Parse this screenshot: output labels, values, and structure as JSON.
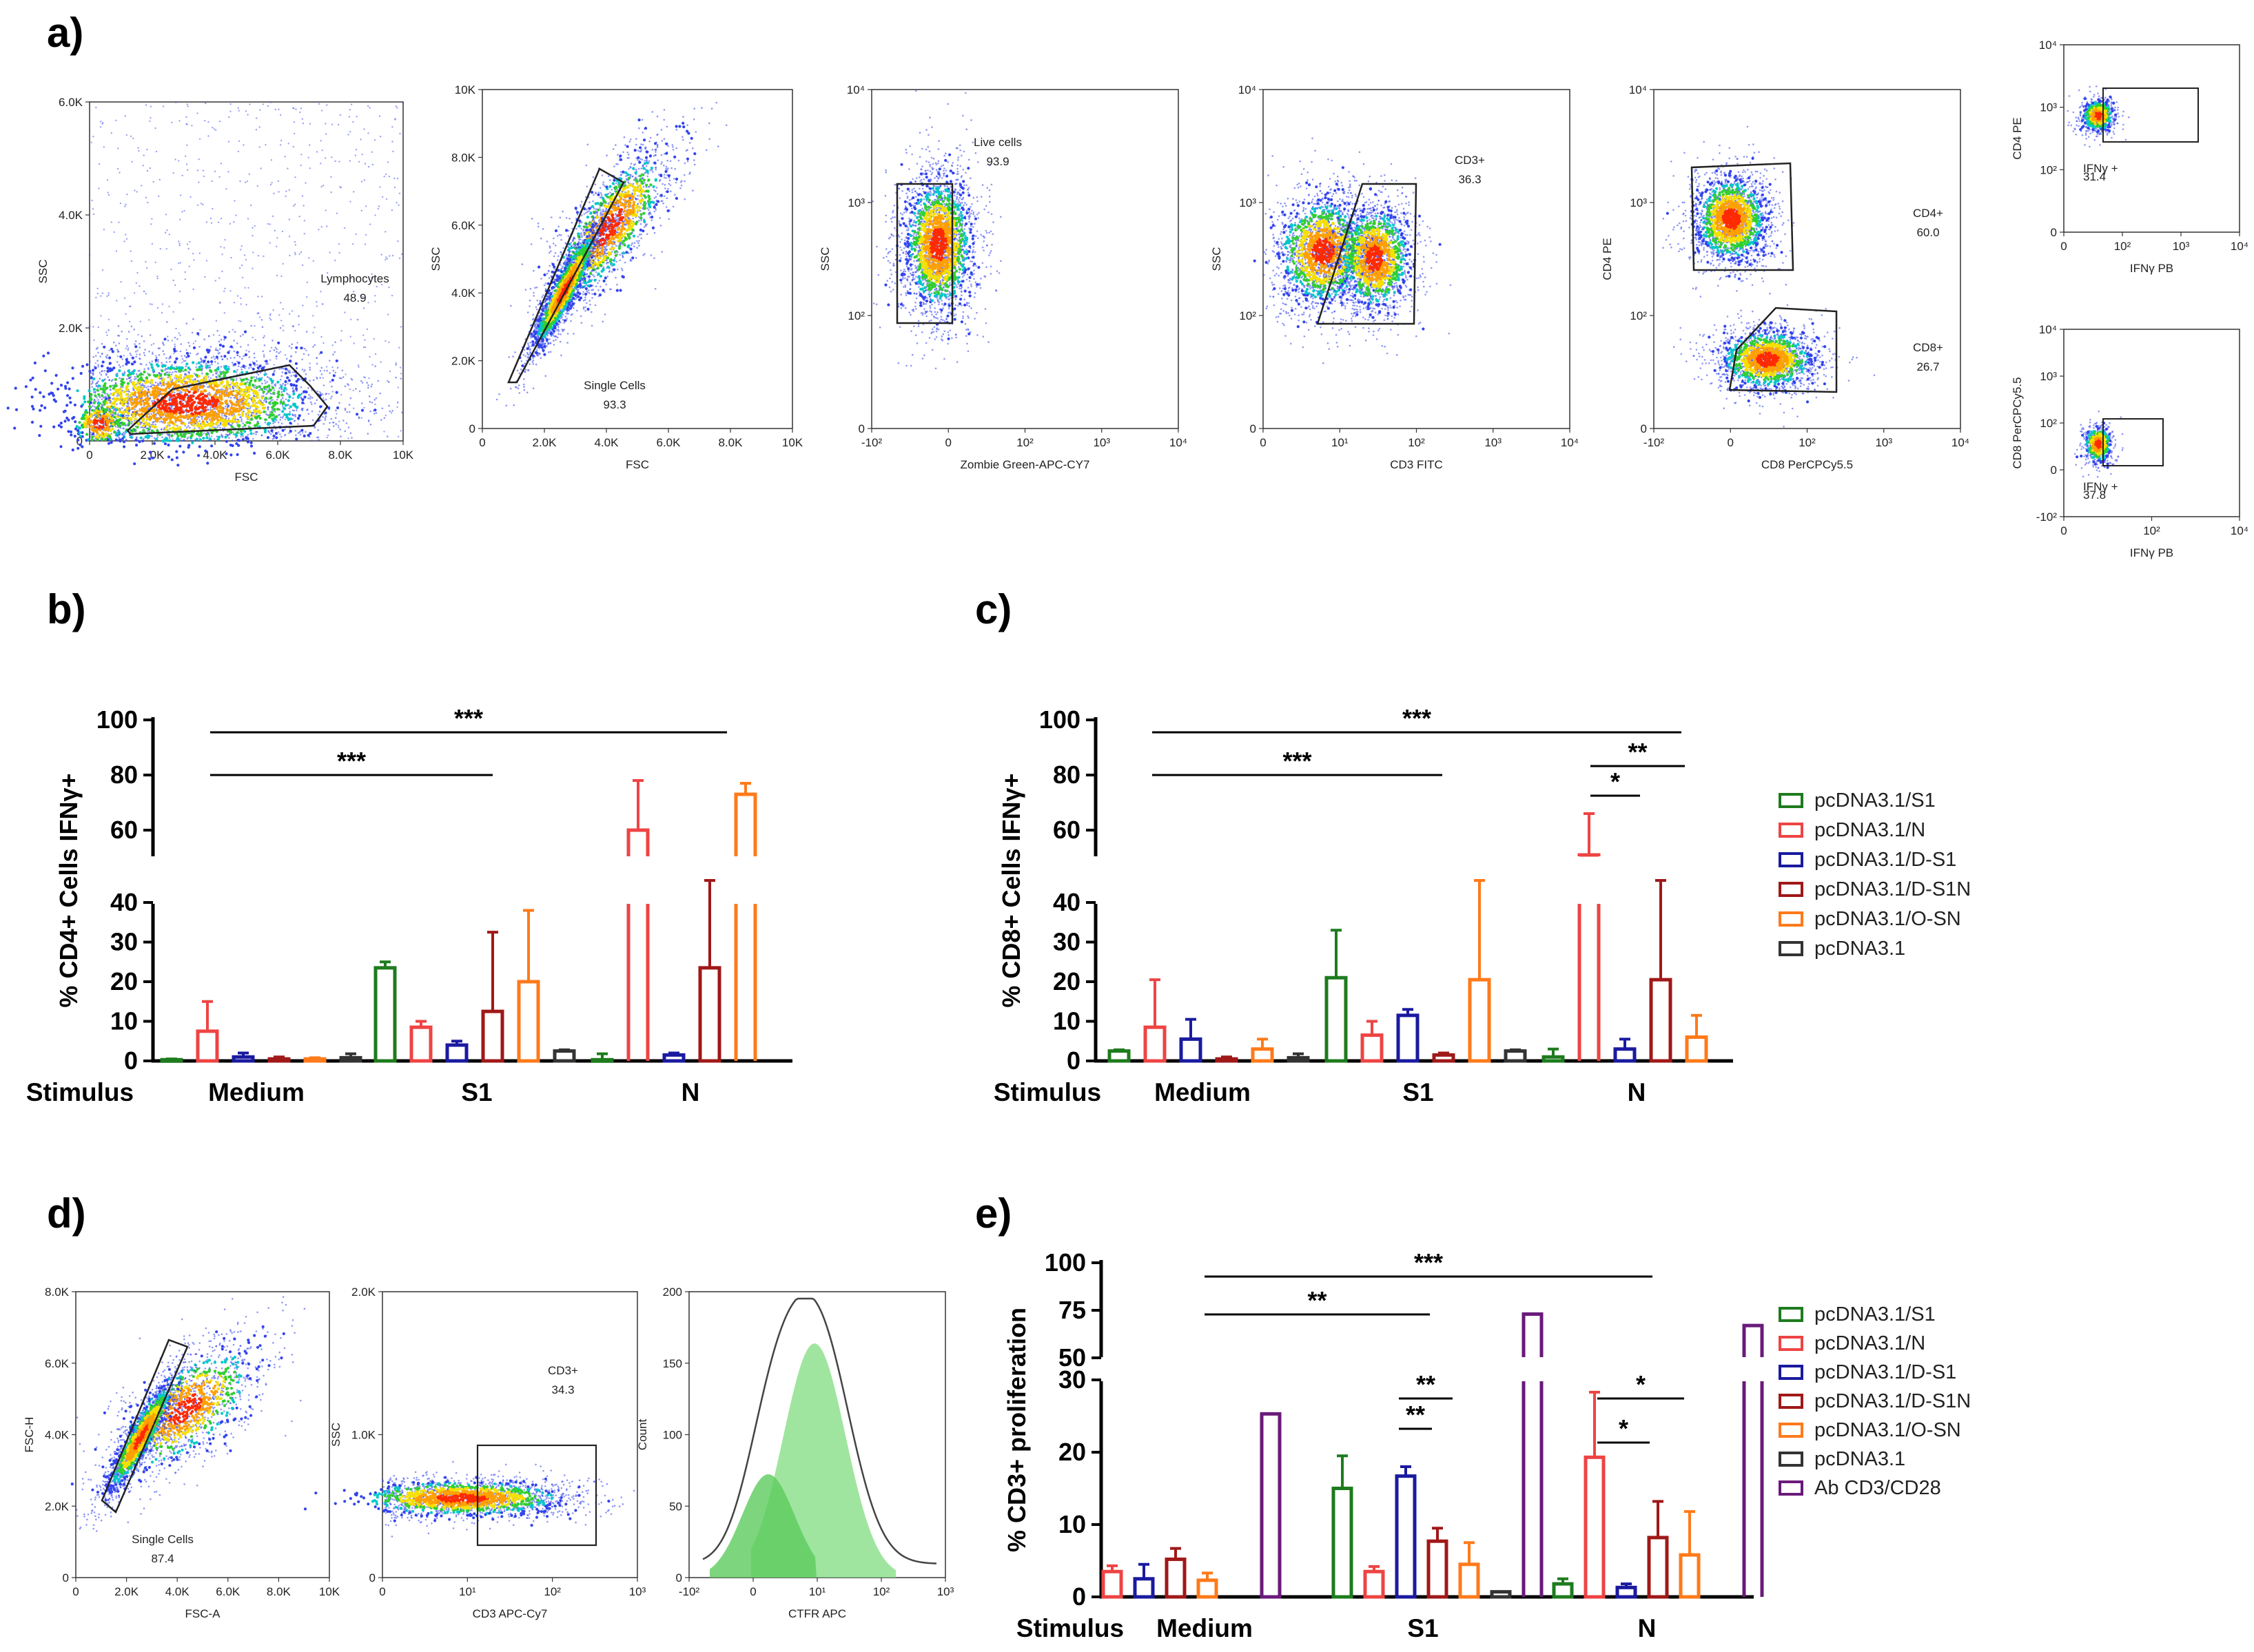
{
  "panel_labels": {
    "a": "a)",
    "b": "b)",
    "c": "c)",
    "d": "d)",
    "e": "e)"
  },
  "colors": {
    "pcDNA3.1/S1": "#1e7b1e",
    "pcDNA3.1/N": "#ee4444",
    "pcDNA3.1/D-S1": "#1a1aa0",
    "pcDNA3.1/D-S1N": "#a01818",
    "pcDNA3.1/O-SN": "#ff7a1a",
    "pcDNA3.1": "#333333",
    "Ab CD3/CD28": "#6a1a7a",
    "dots": "#3344ee",
    "gate": "#222222"
  },
  "flow_a": {
    "p1": {
      "xlabel": "FSC",
      "ylabel": "SSC",
      "xticks": [
        "0",
        "2.0K",
        "4.0K",
        "6.0K",
        "8.0K",
        "10K"
      ],
      "yticks": [
        "0",
        "2.0K",
        "4.0K",
        "6.0K"
      ],
      "gate_name": "Lymphocytes",
      "gate_value": "48.9"
    },
    "p2": {
      "xlabel": "FSC",
      "ylabel": "SSC",
      "xticks": [
        "0",
        "2.0K",
        "4.0K",
        "6.0K",
        "8.0K",
        "10K"
      ],
      "yticks": [
        "0",
        "2.0K",
        "4.0K",
        "6.0K",
        "8.0K",
        "10K"
      ],
      "gate_name": "Single Cells",
      "gate_value": "93.3"
    },
    "p3": {
      "xlabel": "Zombie Green-APC-CY7",
      "ylabel": "SSC",
      "xticks": [
        "-10²",
        "0",
        "10²",
        "10³",
        "10⁴"
      ],
      "yticks": [
        "0",
        "10²",
        "10³",
        "10⁴"
      ],
      "gate_name": "Live cells",
      "gate_value": "93.9"
    },
    "p4": {
      "xlabel": "CD3 FITC",
      "ylabel": "SSC",
      "xticks": [
        "0",
        "10¹",
        "10²",
        "10³",
        "10⁴"
      ],
      "yticks": [
        "0",
        "10²",
        "10³",
        "10⁴"
      ],
      "gate_name": "CD3+",
      "gate_value": "36.3"
    },
    "p5": {
      "xlabel": "CD8 PerCPCy5.5",
      "ylabel": "CD4 PE",
      "xticks": [
        "-10²",
        "0",
        "10²",
        "10³",
        "10⁴"
      ],
      "yticks": [
        "0",
        "10²",
        "10³",
        "10⁴"
      ],
      "gate1_name": "CD4+",
      "gate1_value": "60.0",
      "gate2_name": "CD8+",
      "gate2_value": "26.7"
    },
    "p6": {
      "xlabel": "IFNγ PB",
      "ylabel": "CD4 PE",
      "xticks": [
        "0",
        "10²",
        "10³",
        "10⁴"
      ],
      "yticks": [
        "0",
        "10²",
        "10³",
        "10⁴"
      ],
      "gate_name": "IFNγ +",
      "gate_value": "31.4"
    },
    "p7": {
      "xlabel": "IFNγ PB",
      "ylabel": "CD8 PerCPCy5.5",
      "xticks": [
        "0",
        "10²",
        "10⁴"
      ],
      "yticks": [
        "-10²",
        "0",
        "10²",
        "10³",
        "10⁴"
      ],
      "gate_name": "IFNγ +",
      "gate_value": "37.8"
    }
  },
  "flow_d": {
    "p1": {
      "xlabel": "FSC-A",
      "ylabel": "FSC-H",
      "xticks": [
        "0",
        "2.0K",
        "4.0K",
        "6.0K",
        "8.0K",
        "10K"
      ],
      "yticks": [
        "0",
        "2.0K",
        "4.0K",
        "6.0K",
        "8.0K"
      ],
      "gate_name": "Single Cells",
      "gate_value": "87.4"
    },
    "p2": {
      "xlabel": "CD3 APC-Cy7",
      "ylabel": "SSC",
      "xticks": [
        "0",
        "10¹",
        "10²",
        "10³"
      ],
      "yticks": [
        "0",
        "1.0K",
        "2.0K"
      ],
      "gate_name": "CD3+",
      "gate_value": "34.3"
    },
    "p3": {
      "xlabel": "CTFR APC",
      "ylabel": "Count",
      "xticks": [
        "-10²",
        "0",
        "10¹",
        "10²",
        "10³"
      ],
      "yticks": [
        "0",
        "50",
        "100",
        "150",
        "200"
      ]
    }
  },
  "chart_data": [
    {
      "id": "b",
      "type": "bar",
      "ylabel": "% CD4+ Cells IFNγ+",
      "stimulus_label": "Stimulus",
      "categories": [
        "Medium",
        "S1",
        "N"
      ],
      "y_broken": true,
      "yticks_lower": [
        0,
        10,
        20,
        30,
        40
      ],
      "yticks_upper": [
        60,
        80,
        100
      ],
      "series": [
        {
          "name": "pcDNA3.1/S1",
          "values": [
            0.3,
            23.5,
            0.3
          ],
          "errors": [
            0.2,
            1.5,
            1.5
          ]
        },
        {
          "name": "pcDNA3.1/N",
          "values": [
            7.5,
            8.5,
            60
          ],
          "errors": [
            7.5,
            1.5,
            18
          ]
        },
        {
          "name": "pcDNA3.1/D-S1",
          "values": [
            1.0,
            4.0,
            1.5
          ],
          "errors": [
            1.0,
            1.0,
            0.5
          ]
        },
        {
          "name": "pcDNA3.1/D-S1N",
          "values": [
            0.5,
            12.5,
            23.5
          ],
          "errors": [
            0.5,
            20,
            25
          ]
        },
        {
          "name": "pcDNA3.1/O-SN",
          "values": [
            0.5,
            20,
            73
          ],
          "errors": [
            0.3,
            18,
            4
          ]
        },
        {
          "name": "pcDNA3.1",
          "values": [
            0.8,
            2.5,
            0
          ],
          "errors": [
            1.0,
            0.3,
            0
          ]
        }
      ],
      "significance": [
        {
          "label": "***",
          "from": "Medium",
          "to": "S1"
        },
        {
          "label": "***",
          "from": "Medium",
          "to": "N"
        }
      ]
    },
    {
      "id": "c",
      "type": "bar",
      "ylabel": "% CD8+ Cells IFNγ+",
      "stimulus_label": "Stimulus",
      "categories": [
        "Medium",
        "S1",
        "N"
      ],
      "y_broken": true,
      "yticks_lower": [
        0,
        10,
        20,
        30,
        40
      ],
      "yticks_upper": [
        60,
        80,
        100
      ],
      "series": [
        {
          "name": "pcDNA3.1/S1",
          "values": [
            2.5,
            21,
            1.0
          ],
          "errors": [
            0.3,
            12,
            2.0
          ]
        },
        {
          "name": "pcDNA3.1/N",
          "values": [
            8.5,
            6.5,
            51
          ],
          "errors": [
            12,
            3.5,
            15
          ]
        },
        {
          "name": "pcDNA3.1/D-S1",
          "values": [
            5.5,
            11.5,
            3.0
          ],
          "errors": [
            5.0,
            1.5,
            2.5
          ]
        },
        {
          "name": "pcDNA3.1/D-S1N",
          "values": [
            0.5,
            1.5,
            20.5
          ],
          "errors": [
            0.5,
            0.5,
            29
          ]
        },
        {
          "name": "pcDNA3.1/O-SN",
          "values": [
            3.0,
            20.5,
            6.0
          ],
          "errors": [
            2.5,
            29,
            5.5
          ]
        },
        {
          "name": "pcDNA3.1",
          "values": [
            0.8,
            2.5,
            0
          ],
          "errors": [
            1.0,
            0.3,
            0
          ]
        }
      ],
      "significance": [
        {
          "label": "***",
          "from": "Medium",
          "to": "S1"
        },
        {
          "label": "***",
          "from": "Medium",
          "to": "N"
        },
        {
          "label": "*",
          "note": "N: pcDNA3.1/N vs pcDNA3.1/D-S1"
        },
        {
          "label": "**",
          "note": "N: pcDNA3.1/N vs pcDNA3.1/O-SN"
        }
      ]
    },
    {
      "id": "e",
      "type": "bar",
      "ylabel": "% CD3+ proliferation",
      "stimulus_label": "Stimulus",
      "categories": [
        "Medium",
        "S1",
        "N"
      ],
      "y_broken": true,
      "yticks_lower": [
        0,
        10,
        20,
        30
      ],
      "yticks_upper": [
        50,
        75,
        100
      ],
      "series": [
        {
          "name": "pcDNA3.1/S1",
          "values": [
            0,
            15,
            1.8
          ],
          "errors": [
            0,
            4.5,
            0.7
          ]
        },
        {
          "name": "pcDNA3.1/N",
          "values": [
            3.5,
            3.5,
            19.3
          ],
          "errors": [
            0.8,
            0.7,
            9
          ]
        },
        {
          "name": "pcDNA3.1/D-S1",
          "values": [
            2.5,
            16.7,
            1.3
          ],
          "errors": [
            2.0,
            1.3,
            0.5
          ]
        },
        {
          "name": "pcDNA3.1/D-S1N",
          "values": [
            5.2,
            7.7,
            8.2
          ],
          "errors": [
            1.5,
            1.8,
            5.0
          ]
        },
        {
          "name": "pcDNA3.1/O-SN",
          "values": [
            2.3,
            4.5,
            5.8
          ],
          "errors": [
            1.0,
            3.0,
            6.0
          ]
        },
        {
          "name": "pcDNA3.1",
          "values": [
            0,
            0.7,
            0
          ],
          "errors": [
            0,
            0,
            0
          ]
        },
        {
          "name": "Ab CD3/CD28",
          "values": [
            25.3,
            73,
            67
          ],
          "errors": [
            0,
            0,
            0
          ]
        }
      ],
      "significance": [
        {
          "label": "**",
          "from": "Medium",
          "to": "S1"
        },
        {
          "label": "***",
          "from": "Medium",
          "to": "N"
        },
        {
          "label": "**",
          "note": "S1: pcDNA3.1/D-S1 vs pcDNA3.1/O-SN"
        },
        {
          "label": "**",
          "note": "S1: pcDNA3.1/D-S1 vs pcDNA3.1/D-S1N"
        },
        {
          "label": "*",
          "note": "N: pcDNA3.1/N vs pcDNA3.1/O-SN"
        },
        {
          "label": "*",
          "note": "N: pcDNA3.1/N vs pcDNA3.1/D-S1N"
        }
      ]
    }
  ],
  "legend_c": [
    "pcDNA3.1/S1",
    "pcDNA3.1/N",
    "pcDNA3.1/D-S1",
    "pcDNA3.1/D-S1N",
    "pcDNA3.1/O-SN",
    "pcDNA3.1"
  ],
  "legend_e": [
    "pcDNA3.1/S1",
    "pcDNA3.1/N",
    "pcDNA3.1/D-S1",
    "pcDNA3.1/D-S1N",
    "pcDNA3.1/O-SN",
    "pcDNA3.1",
    "Ab CD3/CD28"
  ]
}
